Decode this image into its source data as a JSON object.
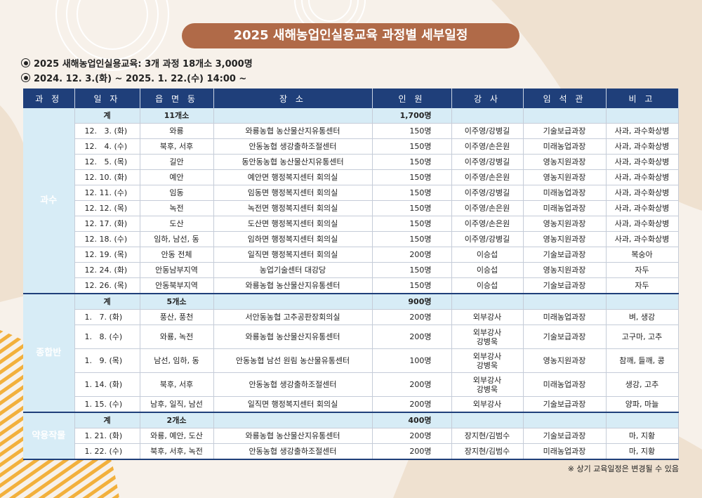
{
  "title": "2025 새해농업인실용교육 과정별 세부일정",
  "info": [
    "2025 새해농업인실용교육: 3개 과정 18개소 3,000명",
    "2024. 12. 3.(화) ~ 2025. 1. 22.(수) 14:00 ~"
  ],
  "headers": [
    "과 정",
    "일 자",
    "읍 면 동",
    "장 소",
    "인 원",
    "강 사",
    "임 석 관",
    "비 고"
  ],
  "groups": [
    {
      "category": "과수",
      "subtotal": {
        "label": "계",
        "places": "11개소",
        "count": "1,700명"
      },
      "rows": [
        {
          "date": "12.   3. (화)",
          "area": "와룡",
          "place": "와룡농협 농산물산지유통센터",
          "count": "150명",
          "lecturer": [
            "이주영/강병길"
          ],
          "officer": "기술보급과장",
          "note": "사과, 과수화상병"
        },
        {
          "date": "12.   4. (수)",
          "area": "북후, 서후",
          "place": "안동농협 생강출하조절센터",
          "count": "150명",
          "lecturer": [
            "이주영/손은원"
          ],
          "officer": "미래농업과장",
          "note": "사과, 과수화상병"
        },
        {
          "date": "12.   5. (목)",
          "area": "길안",
          "place": "동안동농협 농산물산지유통센터",
          "count": "150명",
          "lecturer": [
            "이주영/강병길"
          ],
          "officer": "영농지원과장",
          "note": "사과, 과수화상병"
        },
        {
          "date": "12. 10. (화)",
          "area": "예안",
          "place": "예안면 행정복지센터 회의실",
          "count": "150명",
          "lecturer": [
            "이주영/손은원"
          ],
          "officer": "영농지원과장",
          "note": "사과, 과수화상병"
        },
        {
          "date": "12. 11. (수)",
          "area": "임동",
          "place": "임동면 행정복지센터 회의실",
          "count": "150명",
          "lecturer": [
            "이주영/강병길"
          ],
          "officer": "미래농업과장",
          "note": "사과, 과수화상병"
        },
        {
          "date": "12. 12. (목)",
          "area": "녹전",
          "place": "녹전면 행정복지센터 회의실",
          "count": "150명",
          "lecturer": [
            "이주영/손은원"
          ],
          "officer": "미래농업과장",
          "note": "사과, 과수화상병"
        },
        {
          "date": "12. 17. (화)",
          "area": "도산",
          "place": "도산면 행정복지센터 회의실",
          "count": "150명",
          "lecturer": [
            "이주영/손은원"
          ],
          "officer": "영농지원과장",
          "note": "사과, 과수화상병"
        },
        {
          "date": "12. 18. (수)",
          "area": "임하, 남선, 동",
          "place": "임하면 행정복지센터 회의실",
          "count": "150명",
          "lecturer": [
            "이주영/강병길"
          ],
          "officer": "영농지원과장",
          "note": "사과, 과수화상병"
        },
        {
          "date": "12. 19. (목)",
          "area": "안동 전체",
          "place": "일직면 행정복지센터 회의실",
          "count": "200명",
          "lecturer": [
            "이승섭"
          ],
          "officer": "기술보급과장",
          "note": "복숭아"
        },
        {
          "date": "12. 24. (화)",
          "area": "안동남부지역",
          "place": "농업기술센터 대강당",
          "count": "150명",
          "lecturer": [
            "이승섭"
          ],
          "officer": "영농지원과장",
          "note": "자두"
        },
        {
          "date": "12. 26. (목)",
          "area": "안동북부지역",
          "place": "와룡농협 농산물산지유통센터",
          "count": "150명",
          "lecturer": [
            "이승섭"
          ],
          "officer": "기술보급과장",
          "note": "자두"
        }
      ]
    },
    {
      "category": "종합반",
      "subtotal": {
        "label": "계",
        "places": "5개소",
        "count": "900명"
      },
      "rows": [
        {
          "date": "1.   7. (화)",
          "area": "풍산, 풍천",
          "place": "서안동농협 고추공판장회의실",
          "count": "200명",
          "lecturer": [
            "외부강사"
          ],
          "officer": "미래농업과장",
          "note": "벼, 생강"
        },
        {
          "date": "1.   8. (수)",
          "area": "와룡, 녹전",
          "place": "와룡농협 농산물산지유통센터",
          "count": "200명",
          "lecturer": [
            "외부강사",
            "강병욱"
          ],
          "officer": "기술보급과장",
          "note": "고구마, 고추"
        },
        {
          "date": "1.   9. (목)",
          "area": "남선, 임하, 동",
          "place": "안동농협 남선 원림 농산물유통센터",
          "count": "100명",
          "lecturer": [
            "외부강사",
            "강병욱"
          ],
          "officer": "영농지원과장",
          "note": "참깨, 들깨, 콩"
        },
        {
          "date": "1. 14. (화)",
          "area": "북후, 서후",
          "place": "안동농협 생강출하조절센터",
          "count": "200명",
          "lecturer": [
            "외부강사",
            "강병욱"
          ],
          "officer": "미래농업과장",
          "note": "생강, 고추"
        },
        {
          "date": "1. 15. (수)",
          "area": "남후, 일직, 남선",
          "place": "일직면 행정복지센터 회의실",
          "count": "200명",
          "lecturer": [
            "외부강사"
          ],
          "officer": "기술보급과장",
          "note": "양파, 마늘"
        }
      ]
    },
    {
      "category": "약용작물",
      "subtotal": {
        "label": "계",
        "places": "2개소",
        "count": "400명"
      },
      "rows": [
        {
          "date": "1. 21. (화)",
          "area": "와룡, 예안, 도산",
          "place": "와룡농협 농산물산지유통센터",
          "count": "200명",
          "lecturer": [
            "장지현/김범수"
          ],
          "officer": "기술보급과장",
          "note": "마, 지황"
        },
        {
          "date": "1. 22. (수)",
          "area": "북후, 서후, 녹전",
          "place": "안동농협 생강출하조절센터",
          "count": "200명",
          "lecturer": [
            "장지현/김범수"
          ],
          "officer": "미래농업과장",
          "note": "마, 지황"
        }
      ]
    }
  ],
  "footnote": "※ 상기 교육일정은 변경될 수 있음",
  "colors": {
    "header": "#1f3f7a",
    "category": "#2d8fc4",
    "subtotal": "#d7ecf6",
    "title": "#b06a48"
  }
}
